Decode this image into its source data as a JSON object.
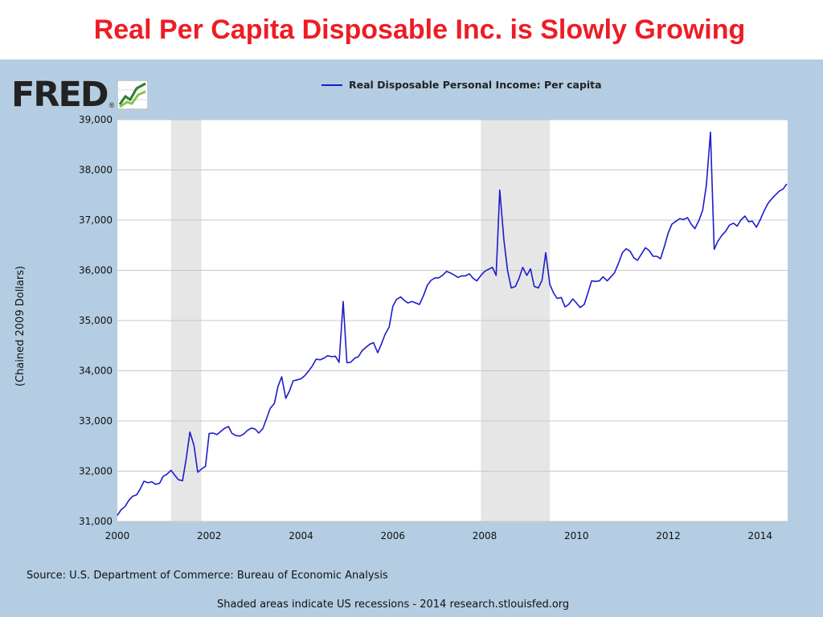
{
  "slide": {
    "title": "Real Per Capita Disposable Inc. is Slowly Growing"
  },
  "logo": {
    "text": "FRED",
    "registered": "®",
    "icon": "fred-chart-logo-icon"
  },
  "footer": {
    "source": "Source: U.S. Department of Commerce: Bureau of Economic Analysis",
    "note": "Shaded areas indicate US recessions - 2014 research.stlouisfed.org"
  },
  "colors": {
    "title": "#ee1c25",
    "panel_background": "#b4cde2",
    "plot_background": "#ffffff",
    "series_line": "#1c1ccc",
    "recession_shade": "#e6e6e6",
    "gridline": "#c8c8c8"
  },
  "chart_data": {
    "type": "line",
    "ylabel": "(Chained 2009 Dollars)",
    "xlim": [
      2000,
      2014.6
    ],
    "ylim": [
      31000,
      39000
    ],
    "xticks": [
      2000,
      2002,
      2004,
      2006,
      2008,
      2010,
      2012,
      2014
    ],
    "xtick_labels": [
      "2000",
      "2002",
      "2004",
      "2006",
      "2008",
      "2010",
      "2012",
      "2014"
    ],
    "yticks": [
      31000,
      32000,
      33000,
      34000,
      35000,
      36000,
      37000,
      38000,
      39000
    ],
    "ytick_labels": [
      "31,000",
      "32,000",
      "33,000",
      "34,000",
      "35,000",
      "36,000",
      "37,000",
      "38,000",
      "39,000"
    ],
    "grid": true,
    "legend_position": "top-center",
    "recessions": [
      {
        "start": 2001.17,
        "end": 2001.83
      },
      {
        "start": 2007.92,
        "end": 2009.42
      }
    ],
    "series": [
      {
        "name": "Real Disposable Personal Income: Per capita",
        "points": [
          [
            2000.0,
            31120
          ],
          [
            2000.08,
            31230
          ],
          [
            2000.17,
            31300
          ],
          [
            2000.25,
            31420
          ],
          [
            2000.33,
            31500
          ],
          [
            2000.42,
            31530
          ],
          [
            2000.5,
            31650
          ],
          [
            2000.58,
            31800
          ],
          [
            2000.67,
            31770
          ],
          [
            2000.75,
            31790
          ],
          [
            2000.83,
            31740
          ],
          [
            2000.92,
            31760
          ],
          [
            2001.0,
            31900
          ],
          [
            2001.08,
            31940
          ],
          [
            2001.17,
            32020
          ],
          [
            2001.25,
            31920
          ],
          [
            2001.33,
            31830
          ],
          [
            2001.42,
            31810
          ],
          [
            2001.5,
            32250
          ],
          [
            2001.58,
            32780
          ],
          [
            2001.67,
            32510
          ],
          [
            2001.75,
            31980
          ],
          [
            2001.83,
            32040
          ],
          [
            2001.92,
            32100
          ],
          [
            2002.0,
            32750
          ],
          [
            2002.08,
            32760
          ],
          [
            2002.17,
            32730
          ],
          [
            2002.25,
            32790
          ],
          [
            2002.33,
            32850
          ],
          [
            2002.42,
            32890
          ],
          [
            2002.5,
            32750
          ],
          [
            2002.58,
            32710
          ],
          [
            2002.67,
            32700
          ],
          [
            2002.75,
            32740
          ],
          [
            2002.83,
            32810
          ],
          [
            2002.92,
            32860
          ],
          [
            2003.0,
            32840
          ],
          [
            2003.08,
            32760
          ],
          [
            2003.17,
            32850
          ],
          [
            2003.25,
            33050
          ],
          [
            2003.33,
            33250
          ],
          [
            2003.42,
            33350
          ],
          [
            2003.5,
            33690
          ],
          [
            2003.58,
            33880
          ],
          [
            2003.67,
            33450
          ],
          [
            2003.75,
            33600
          ],
          [
            2003.83,
            33800
          ],
          [
            2003.92,
            33820
          ],
          [
            2004.0,
            33840
          ],
          [
            2004.08,
            33900
          ],
          [
            2004.17,
            34000
          ],
          [
            2004.25,
            34100
          ],
          [
            2004.33,
            34230
          ],
          [
            2004.42,
            34220
          ],
          [
            2004.5,
            34250
          ],
          [
            2004.58,
            34300
          ],
          [
            2004.67,
            34280
          ],
          [
            2004.75,
            34290
          ],
          [
            2004.83,
            34170
          ],
          [
            2004.92,
            35380
          ],
          [
            2005.0,
            34160
          ],
          [
            2005.08,
            34170
          ],
          [
            2005.17,
            34250
          ],
          [
            2005.25,
            34280
          ],
          [
            2005.33,
            34400
          ],
          [
            2005.42,
            34470
          ],
          [
            2005.5,
            34530
          ],
          [
            2005.58,
            34560
          ],
          [
            2005.67,
            34360
          ],
          [
            2005.75,
            34530
          ],
          [
            2005.83,
            34720
          ],
          [
            2005.92,
            34870
          ],
          [
            2006.0,
            35280
          ],
          [
            2006.08,
            35420
          ],
          [
            2006.17,
            35470
          ],
          [
            2006.25,
            35400
          ],
          [
            2006.33,
            35350
          ],
          [
            2006.42,
            35380
          ],
          [
            2006.5,
            35350
          ],
          [
            2006.58,
            35320
          ],
          [
            2006.67,
            35500
          ],
          [
            2006.75,
            35700
          ],
          [
            2006.83,
            35800
          ],
          [
            2006.92,
            35850
          ],
          [
            2007.0,
            35850
          ],
          [
            2007.08,
            35900
          ],
          [
            2007.17,
            35980
          ],
          [
            2007.25,
            35950
          ],
          [
            2007.33,
            35910
          ],
          [
            2007.42,
            35860
          ],
          [
            2007.5,
            35890
          ],
          [
            2007.58,
            35890
          ],
          [
            2007.67,
            35930
          ],
          [
            2007.75,
            35840
          ],
          [
            2007.83,
            35790
          ],
          [
            2007.92,
            35900
          ],
          [
            2008.0,
            35980
          ],
          [
            2008.08,
            36020
          ],
          [
            2008.17,
            36060
          ],
          [
            2008.25,
            35900
          ],
          [
            2008.33,
            37600
          ],
          [
            2008.42,
            36600
          ],
          [
            2008.5,
            36000
          ],
          [
            2008.58,
            35650
          ],
          [
            2008.67,
            35680
          ],
          [
            2008.75,
            35840
          ],
          [
            2008.83,
            36060
          ],
          [
            2008.92,
            35900
          ],
          [
            2009.0,
            36030
          ],
          [
            2009.08,
            35680
          ],
          [
            2009.17,
            35650
          ],
          [
            2009.25,
            35800
          ],
          [
            2009.33,
            36350
          ],
          [
            2009.42,
            35720
          ],
          [
            2009.5,
            35550
          ],
          [
            2009.58,
            35440
          ],
          [
            2009.67,
            35460
          ],
          [
            2009.75,
            35270
          ],
          [
            2009.83,
            35320
          ],
          [
            2009.92,
            35430
          ],
          [
            2010.0,
            35350
          ],
          [
            2010.08,
            35260
          ],
          [
            2010.17,
            35320
          ],
          [
            2010.25,
            35550
          ],
          [
            2010.33,
            35790
          ],
          [
            2010.42,
            35780
          ],
          [
            2010.5,
            35790
          ],
          [
            2010.58,
            35870
          ],
          [
            2010.67,
            35790
          ],
          [
            2010.75,
            35870
          ],
          [
            2010.83,
            35950
          ],
          [
            2010.92,
            36150
          ],
          [
            2011.0,
            36350
          ],
          [
            2011.08,
            36430
          ],
          [
            2011.17,
            36380
          ],
          [
            2011.25,
            36250
          ],
          [
            2011.33,
            36200
          ],
          [
            2011.42,
            36330
          ],
          [
            2011.5,
            36450
          ],
          [
            2011.58,
            36400
          ],
          [
            2011.67,
            36280
          ],
          [
            2011.75,
            36280
          ],
          [
            2011.83,
            36230
          ],
          [
            2011.92,
            36490
          ],
          [
            2012.0,
            36750
          ],
          [
            2012.08,
            36920
          ],
          [
            2012.17,
            36980
          ],
          [
            2012.25,
            37030
          ],
          [
            2012.33,
            37010
          ],
          [
            2012.42,
            37050
          ],
          [
            2012.5,
            36920
          ],
          [
            2012.58,
            36830
          ],
          [
            2012.67,
            37000
          ],
          [
            2012.75,
            37200
          ],
          [
            2012.83,
            37700
          ],
          [
            2012.92,
            38750
          ],
          [
            2013.0,
            36420
          ],
          [
            2013.08,
            36580
          ],
          [
            2013.17,
            36700
          ],
          [
            2013.25,
            36780
          ],
          [
            2013.33,
            36900
          ],
          [
            2013.42,
            36940
          ],
          [
            2013.5,
            36880
          ],
          [
            2013.58,
            37000
          ],
          [
            2013.67,
            37080
          ],
          [
            2013.75,
            36970
          ],
          [
            2013.83,
            36980
          ],
          [
            2013.92,
            36860
          ],
          [
            2014.0,
            37000
          ],
          [
            2014.08,
            37170
          ],
          [
            2014.17,
            37330
          ],
          [
            2014.25,
            37420
          ],
          [
            2014.33,
            37500
          ],
          [
            2014.42,
            37580
          ],
          [
            2014.5,
            37620
          ],
          [
            2014.58,
            37720
          ]
        ]
      }
    ]
  }
}
